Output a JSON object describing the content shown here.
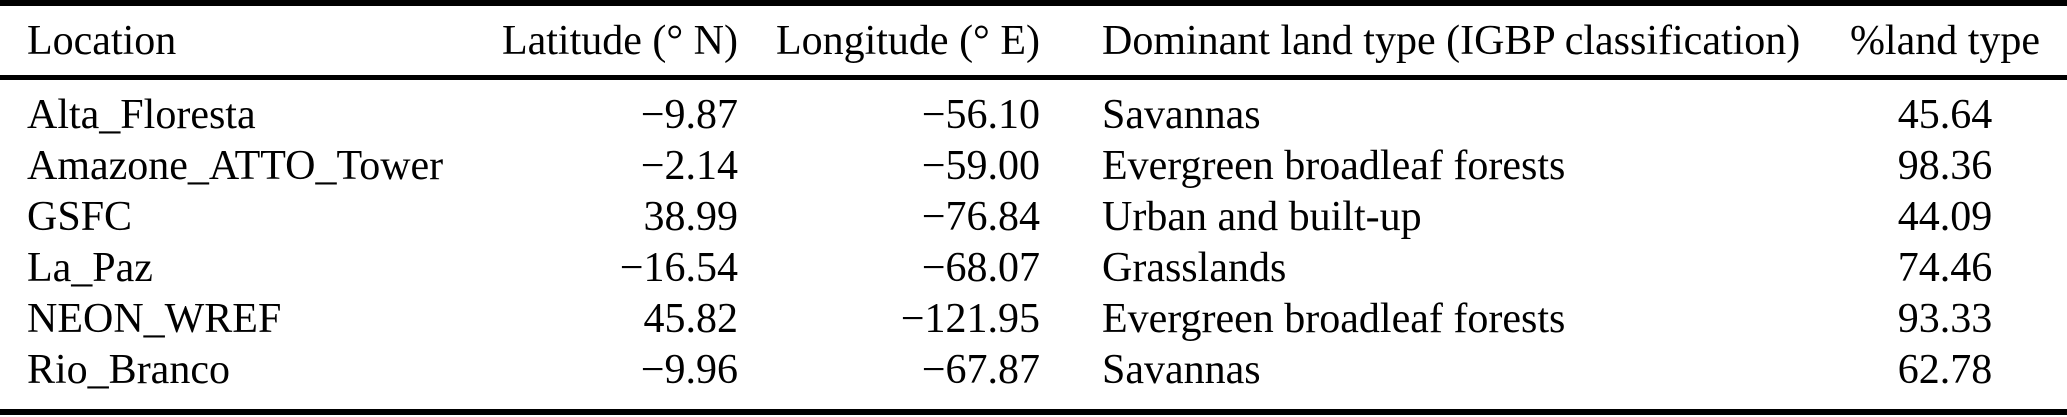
{
  "colors": {
    "text": "#000000",
    "rule": "#000000",
    "background": "#ffffff"
  },
  "table": {
    "columns": [
      {
        "label": "Location",
        "align": "left"
      },
      {
        "label": "Latitude (° N)",
        "align": "right"
      },
      {
        "label": "Longitude (° E)",
        "align": "right"
      },
      {
        "label": "Dominant land type (IGBP classification)",
        "align": "left"
      },
      {
        "label": "%land type",
        "align": "center"
      }
    ],
    "rows": [
      [
        "Alta_Floresta",
        "−9.87",
        "−56.10",
        "Savannas",
        "45.64"
      ],
      [
        "Amazone_ATTO_Tower",
        "−2.14",
        "−59.00",
        "Evergreen broadleaf forests",
        "98.36"
      ],
      [
        "GSFC",
        "38.99",
        "−76.84",
        "Urban and built-up",
        "44.09"
      ],
      [
        "La_Paz",
        "−16.54",
        "−68.07",
        "Grasslands",
        "74.46"
      ],
      [
        "NEON_WREF",
        "45.82",
        "−121.95",
        "Evergreen broadleaf forests",
        "93.33"
      ],
      [
        "Rio_Branco",
        "−9.96",
        "−67.87",
        "Savannas",
        "62.78"
      ]
    ]
  }
}
